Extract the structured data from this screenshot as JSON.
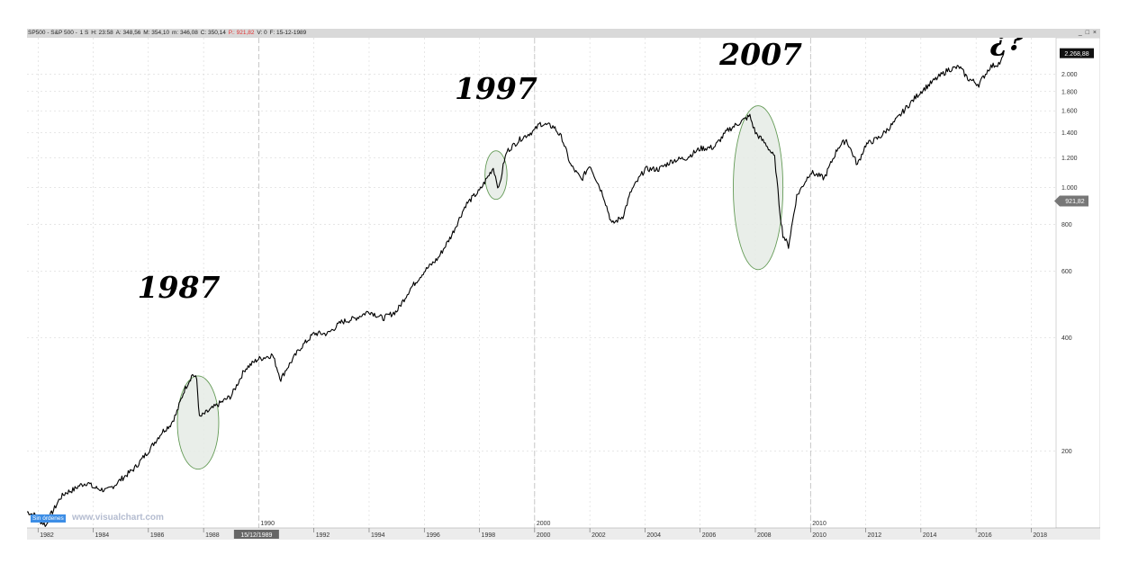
{
  "title_bar": {
    "symbol": "SP500 - S&P 500 -",
    "period": "1 S",
    "hour": "H: 23:58",
    "open": "A: 348,56",
    "max": "M: 354,10",
    "min": "m: 346,08",
    "close": "C: 350,14",
    "pointer": "P.: 921,82",
    "volume": "V: 0",
    "date": "F: 15-12-1989"
  },
  "window_controls": [
    "_",
    "□",
    "×"
  ],
  "orders_badge": "Sin órdenes",
  "watermark": "www.visualchart.com",
  "colors": {
    "line": "#000000",
    "grid": "#cfcfcf",
    "ellipse_stroke": "#4a8a3a",
    "ellipse_fill": "#e6ece6",
    "last_price_bg": "#111111",
    "pointer_bg": "#777777"
  },
  "chart_data": {
    "type": "line",
    "title": "",
    "xlabel": "",
    "ylabel": "",
    "y_scale": "log",
    "ylim": [
      125,
      2500
    ],
    "xlim": [
      1981.6,
      2018.9
    ],
    "y_ticks": [
      {
        "value": 200,
        "label": "200"
      },
      {
        "value": 400,
        "label": "400"
      },
      {
        "value": 600,
        "label": "600"
      },
      {
        "value": 800,
        "label": "800"
      },
      {
        "value": 1000,
        "label": "1.000"
      },
      {
        "value": 1200,
        "label": "1.200"
      },
      {
        "value": 1400,
        "label": "1.400"
      },
      {
        "value": 1600,
        "label": "1.600"
      },
      {
        "value": 1800,
        "label": "1.800"
      },
      {
        "value": 2000,
        "label": "2.000"
      }
    ],
    "x_ticks": [
      {
        "value": 1982,
        "label": "1982"
      },
      {
        "value": 1984,
        "label": "1984"
      },
      {
        "value": 1986,
        "label": "1986"
      },
      {
        "value": 1988,
        "label": "1988"
      },
      {
        "value": 1992,
        "label": "1992"
      },
      {
        "value": 1994,
        "label": "1994"
      },
      {
        "value": 1996,
        "label": "1996"
      },
      {
        "value": 1998,
        "label": "1998"
      },
      {
        "value": 2000,
        "label": "2000"
      },
      {
        "value": 2002,
        "label": "2002"
      },
      {
        "value": 2004,
        "label": "2004"
      },
      {
        "value": 2006,
        "label": "2006"
      },
      {
        "value": 2008,
        "label": "2008"
      },
      {
        "value": 2010,
        "label": "2010"
      },
      {
        "value": 2012,
        "label": "2012"
      },
      {
        "value": 2014,
        "label": "2014"
      },
      {
        "value": 2016,
        "label": "2016"
      },
      {
        "value": 2018,
        "label": "2018"
      }
    ],
    "decade_markers": [
      {
        "value": 1990,
        "label": "1990"
      },
      {
        "value": 2000,
        "label": "2000"
      },
      {
        "value": 2010,
        "label": "2010"
      }
    ],
    "cursor_date": {
      "value": 1989.95,
      "label": "15/12/1989"
    },
    "last_price": {
      "value": 2268.88,
      "label": "2.268,88"
    },
    "pointer_price": {
      "value": 921.82,
      "label": "921,82"
    },
    "annotations": [
      {
        "label": "1987",
        "x": 1987.8,
        "y": 238,
        "rx_years": 0.75,
        "ry_factor": 1.33,
        "label_x": 1987.1,
        "label_y": 510
      },
      {
        "label": "1997",
        "x": 1998.6,
        "y": 1080,
        "rx_years": 0.4,
        "ry_factor": 1.16,
        "label_x": 1998.6,
        "label_y": 1720
      },
      {
        "label": "2007",
        "x": 2008.1,
        "y": 1000,
        "rx_years": 0.9,
        "ry_factor": 1.65,
        "label_x": 2008.2,
        "label_y": 2120
      },
      {
        "label": "¿?",
        "x": 2017.2,
        "y": 2300,
        "label_x": 2017.15,
        "label_y": 2320
      }
    ],
    "series": [
      {
        "x": [
          1981.6,
          1981.9,
          1982.1,
          1982.3,
          1982.45,
          1982.6,
          1982.8,
          1983.0,
          1983.3,
          1983.5,
          1983.8,
          1984.0,
          1984.5,
          1984.8,
          1985.0,
          1985.5,
          1986.0,
          1986.5,
          1986.8,
          1987.0,
          1987.3,
          1987.6,
          1987.75,
          1987.85,
          1988.0,
          1988.5,
          1989.0,
          1989.5,
          1989.95,
          1990.5,
          1990.8,
          1991.0,
          1991.5,
          1992.0,
          1992.5,
          1993.0,
          1993.5,
          1994.0,
          1994.5,
          1995.0,
          1995.5,
          1996.0,
          1996.5,
          1997.0,
          1997.5,
          1997.8,
          1998.0,
          1998.5,
          1998.7,
          1998.9,
          1999.0,
          1999.5,
          2000.0,
          2000.2,
          2000.7,
          2001.0,
          2001.3,
          2001.7,
          2002.0,
          2002.5,
          2002.8,
          2003.2,
          2003.5,
          2004.0,
          2004.5,
          2005.0,
          2005.5,
          2006.0,
          2006.5,
          2007.0,
          2007.5,
          2007.8,
          2008.0,
          2008.4,
          2008.7,
          2008.9,
          2009.0,
          2009.2,
          2009.5,
          2010.0,
          2010.5,
          2011.0,
          2011.3,
          2011.7,
          2012.0,
          2012.5,
          2013.0,
          2013.5,
          2014.0,
          2014.5,
          2015.0,
          2015.4,
          2015.7,
          2016.1,
          2016.5,
          2016.9,
          2017.0
        ],
        "y": [
          138,
          135,
          130,
          127,
          135,
          141,
          150,
          155,
          158,
          162,
          165,
          160,
          157,
          163,
          168,
          180,
          200,
          225,
          235,
          250,
          290,
          320,
          310,
          245,
          250,
          265,
          280,
          330,
          350,
          360,
          310,
          330,
          375,
          410,
          410,
          440,
          450,
          470,
          450,
          470,
          540,
          600,
          650,
          750,
          900,
          950,
          980,
          1130,
          990,
          1180,
          1250,
          1350,
          1420,
          1480,
          1450,
          1350,
          1150,
          1050,
          1150,
          950,
          800,
          840,
          980,
          1120,
          1120,
          1180,
          1200,
          1270,
          1280,
          1420,
          1500,
          1550,
          1400,
          1300,
          1200,
          850,
          750,
          700,
          950,
          1100,
          1060,
          1280,
          1340,
          1150,
          1300,
          1360,
          1480,
          1640,
          1800,
          1930,
          2060,
          2090,
          1950,
          1880,
          2090,
          2150,
          2268.88
        ]
      }
    ]
  }
}
